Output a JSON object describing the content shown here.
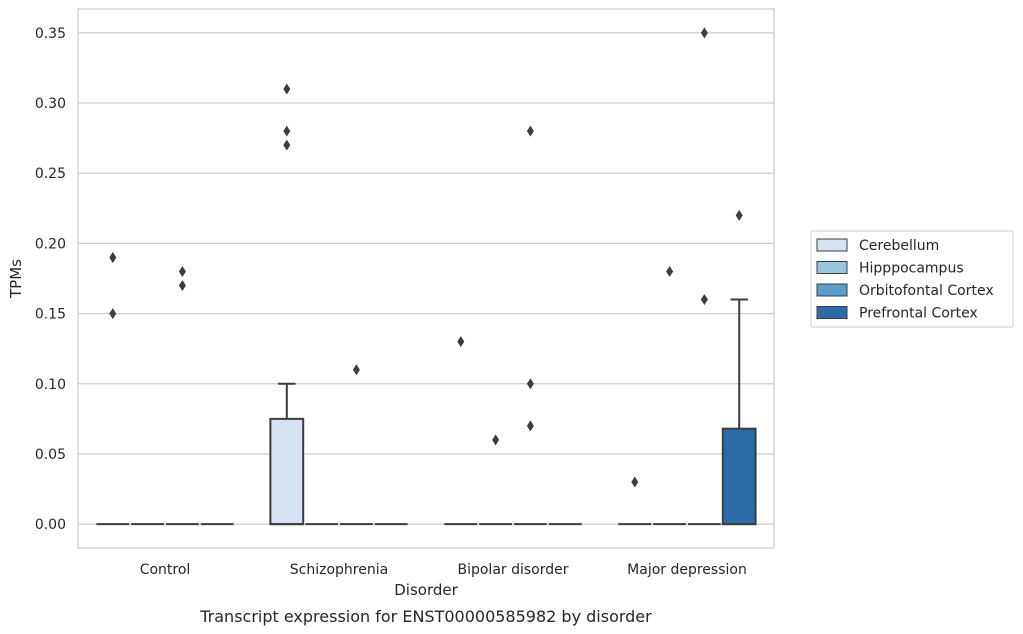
{
  "chart_data": {
    "type": "box",
    "title": "",
    "caption": "Transcript expression for ENST00000585982 by disorder",
    "xlabel": "Disorder",
    "ylabel": "TPMs",
    "ylim": [
      -0.017,
      0.367
    ],
    "yticks": [
      "0.00",
      "0.05",
      "0.10",
      "0.15",
      "0.20",
      "0.25",
      "0.30",
      "0.35"
    ],
    "grid": "horizontal",
    "legend_position": "right",
    "categories": [
      "Control",
      "Schizophrenia",
      "Bipolar disorder",
      "Major depression"
    ],
    "series": [
      {
        "name": "Cerebellum",
        "color": "#d4e2f1",
        "boxes": [
          {
            "category": "Control",
            "q1": 0,
            "median": 0,
            "q3": 0,
            "whisker_low": 0,
            "whisker_high": 0,
            "outliers": [
              0.19,
              0.15
            ]
          },
          {
            "category": "Schizophrenia",
            "q1": 0,
            "median": 0,
            "q3": 0.075,
            "whisker_low": 0,
            "whisker_high": 0.1,
            "outliers": [
              0.31,
              0.28,
              0.27
            ]
          },
          {
            "category": "Bipolar disorder",
            "q1": 0,
            "median": 0,
            "q3": 0,
            "whisker_low": 0,
            "whisker_high": 0,
            "outliers": [
              0.13
            ]
          },
          {
            "category": "Major depression",
            "q1": 0,
            "median": 0,
            "q3": 0,
            "whisker_low": 0,
            "whisker_high": 0,
            "outliers": [
              0.03
            ]
          }
        ]
      },
      {
        "name": "Hipppocampus",
        "color": "#9ac5de",
        "boxes": [
          {
            "category": "Control",
            "q1": 0,
            "median": 0,
            "q3": 0,
            "whisker_low": 0,
            "whisker_high": 0,
            "outliers": []
          },
          {
            "category": "Schizophrenia",
            "q1": 0,
            "median": 0,
            "q3": 0,
            "whisker_low": 0,
            "whisker_high": 0,
            "outliers": []
          },
          {
            "category": "Bipolar disorder",
            "q1": 0,
            "median": 0,
            "q3": 0,
            "whisker_low": 0,
            "whisker_high": 0,
            "outliers": [
              0.06
            ]
          },
          {
            "category": "Major depression",
            "q1": 0,
            "median": 0,
            "q3": 0,
            "whisker_low": 0,
            "whisker_high": 0,
            "outliers": [
              0.18
            ]
          }
        ]
      },
      {
        "name": "Orbitofontal Cortex",
        "color": "#5b9cc9",
        "boxes": [
          {
            "category": "Control",
            "q1": 0,
            "median": 0,
            "q3": 0,
            "whisker_low": 0,
            "whisker_high": 0,
            "outliers": [
              0.18,
              0.17
            ]
          },
          {
            "category": "Schizophrenia",
            "q1": 0,
            "median": 0,
            "q3": 0,
            "whisker_low": 0,
            "whisker_high": 0,
            "outliers": [
              0.11
            ]
          },
          {
            "category": "Bipolar disorder",
            "q1": 0,
            "median": 0,
            "q3": 0,
            "whisker_low": 0,
            "whisker_high": 0,
            "outliers": [
              0.28,
              0.1,
              0.07
            ]
          },
          {
            "category": "Major depression",
            "q1": 0,
            "median": 0,
            "q3": 0,
            "whisker_low": 0,
            "whisker_high": 0,
            "outliers": [
              0.35,
              0.16
            ]
          }
        ]
      },
      {
        "name": "Prefrontal Cortex",
        "color": "#2a6ba8",
        "boxes": [
          {
            "category": "Control",
            "q1": 0,
            "median": 0,
            "q3": 0,
            "whisker_low": 0,
            "whisker_high": 0,
            "outliers": []
          },
          {
            "category": "Schizophrenia",
            "q1": 0,
            "median": 0,
            "q3": 0,
            "whisker_low": 0,
            "whisker_high": 0,
            "outliers": []
          },
          {
            "category": "Bipolar disorder",
            "q1": 0,
            "median": 0,
            "q3": 0,
            "whisker_low": 0,
            "whisker_high": 0,
            "outliers": []
          },
          {
            "category": "Major depression",
            "q1": 0,
            "median": 0,
            "q3": 0.068,
            "whisker_low": 0,
            "whisker_high": 0.16,
            "outliers": [
              0.22
            ]
          }
        ]
      }
    ]
  }
}
